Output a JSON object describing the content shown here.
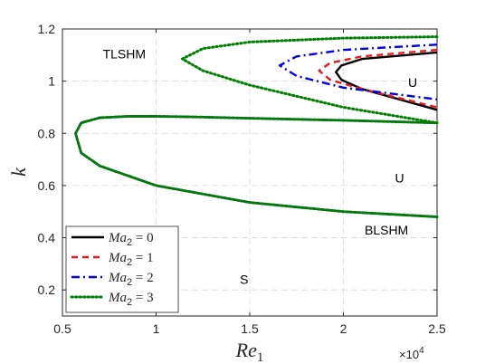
{
  "chart_data": {
    "type": "line",
    "xlabel": "Re",
    "xlabel_sub": "1",
    "ylabel": "k",
    "x_multiplier": "×10",
    "x_multiplier_exp": "4",
    "xlim": [
      5000,
      25000
    ],
    "ylim": [
      0.1,
      1.2
    ],
    "x_ticks": [
      5000,
      10000,
      15000,
      20000,
      25000
    ],
    "x_tick_labels": [
      "0.5",
      "1",
      "1.5",
      "2",
      "2.5"
    ],
    "y_ticks": [
      0.2,
      0.4,
      0.6,
      0.8,
      1.0,
      1.2
    ],
    "y_tick_labels": [
      "0.2",
      "0.4",
      "0.6",
      "0.8",
      "1",
      "1.2"
    ],
    "grid": true,
    "legend_position": "lower-left",
    "annotations": [
      {
        "text": "TLSHM",
        "x": 8300,
        "y": 1.105
      },
      {
        "text": "U",
        "x": 23700,
        "y": 0.995
      },
      {
        "text": "U",
        "x": 23000,
        "y": 0.63
      },
      {
        "text": "BLSHM",
        "x": 22300,
        "y": 0.43
      },
      {
        "text": "S",
        "x": 14700,
        "y": 0.24
      }
    ],
    "series": [
      {
        "name": "Ma2 = 0",
        "legend_prefix": "Ma",
        "legend_sub": "2",
        "legend_suffix": " = 0",
        "color": "#000000",
        "style": "solid",
        "segments": [
          {
            "x": [
              25000,
              21000,
              19900,
              19600,
              19900,
              21000,
              25000
            ],
            "y": [
              1.11,
              1.085,
              1.06,
              1.035,
              1.005,
              0.97,
              0.89
            ]
          },
          {
            "x": [
              25000,
              20000,
              15000,
              10000,
              7000,
              6000,
              5700,
              6000,
              7000,
              8500,
              10000,
              12000,
              15000,
              20000,
              25000
            ],
            "y": [
              0.48,
              0.5,
              0.535,
              0.6,
              0.675,
              0.725,
              0.8,
              0.84,
              0.86,
              0.865,
              0.865,
              0.863,
              0.858,
              0.85,
              0.84
            ]
          }
        ]
      },
      {
        "name": "Ma2 = 1",
        "legend_prefix": "Ma",
        "legend_sub": "2",
        "legend_suffix": " = 1",
        "color": "#e8191b",
        "style": "dashed",
        "segments": [
          {
            "x": [
              25000,
              21000,
              19300,
              18700,
              19300,
              21000,
              25000
            ],
            "y": [
              1.12,
              1.095,
              1.07,
              1.04,
              1.005,
              0.97,
              0.9
            ]
          }
        ]
      },
      {
        "name": "Ma2 = 2",
        "legend_prefix": "Ma",
        "legend_sub": "2",
        "legend_suffix": " = 2",
        "color": "#0000e6",
        "style": "dashdot",
        "segments": [
          {
            "x": [
              25000,
              20000,
              17500,
              16600,
              17500,
              20000,
              25000
            ],
            "y": [
              1.14,
              1.12,
              1.095,
              1.06,
              1.02,
              0.975,
              0.93
            ]
          },
          {
            "x": [
              25000,
              20000,
              15000,
              10000,
              7000,
              6000,
              5700,
              6000,
              7000,
              8500,
              10000,
              12000,
              15000,
              20000,
              25000
            ],
            "y": [
              0.48,
              0.5,
              0.535,
              0.6,
              0.675,
              0.725,
              0.8,
              0.84,
              0.86,
              0.865,
              0.865,
              0.863,
              0.858,
              0.85,
              0.84
            ]
          }
        ]
      },
      {
        "name": "Ma2 = 3",
        "legend_prefix": "Ma",
        "legend_sub": "2",
        "legend_suffix": " = 3",
        "color": "#008000",
        "style": "dotted",
        "segments": [
          {
            "x": [
              25000,
              20000,
              15000,
              12500,
              11400,
              12500,
              15000,
              20000,
              25000
            ],
            "y": [
              1.17,
              1.165,
              1.15,
              1.125,
              1.085,
              1.04,
              0.985,
              0.9,
              0.84
            ]
          },
          {
            "x": [
              25000,
              20000,
              15000,
              10000,
              7000,
              6000,
              5700,
              6000,
              7000,
              8500,
              10000,
              12000,
              15000,
              20000,
              25000
            ],
            "y": [
              0.48,
              0.5,
              0.535,
              0.6,
              0.675,
              0.725,
              0.8,
              0.84,
              0.86,
              0.865,
              0.865,
              0.863,
              0.858,
              0.85,
              0.84
            ]
          }
        ]
      }
    ]
  }
}
